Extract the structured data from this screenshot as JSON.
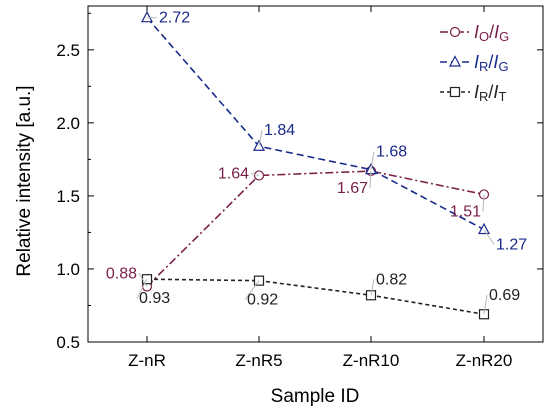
{
  "chart_data": {
    "type": "line",
    "title": "",
    "xlabel": "Sample ID",
    "ylabel": "Relative intensity [a.u.]",
    "categories": [
      "Z-nR",
      "Z-nR5",
      "Z-nR10",
      "Z-nR20"
    ],
    "ylim": [
      0.5,
      2.8
    ],
    "yticks": [
      0.5,
      1.0,
      1.5,
      2.0,
      2.5
    ],
    "ytick_labels": [
      "0.5",
      "1.0",
      "1.5",
      "2.0",
      "2.5"
    ],
    "grid": false,
    "legend_position": "top-right",
    "series": [
      {
        "legend_main": "I",
        "sub1": "O",
        "sep": "/",
        "legend_main2": "I",
        "sub2": "G",
        "values": [
          0.88,
          1.64,
          1.67,
          1.51
        ],
        "labels": [
          "0.88",
          "1.64",
          "1.67",
          "1.51"
        ],
        "color": "#7a1f4a",
        "marker": "circle",
        "line_style": "dash-dot"
      },
      {
        "legend_main": "I",
        "sub1": "R",
        "sep": "/",
        "legend_main2": "I",
        "sub2": "G",
        "values": [
          2.72,
          1.84,
          1.68,
          1.27
        ],
        "labels": [
          "2.72",
          "1.84",
          "1.68",
          "1.27"
        ],
        "color": "#1a2a8c",
        "marker": "triangle",
        "line_style": "dashed"
      },
      {
        "legend_main": "I",
        "sub1": "R",
        "sep": "/",
        "legend_main2": "I",
        "sub2": "T",
        "values": [
          0.93,
          0.92,
          0.82,
          0.69
        ],
        "labels": [
          "0.93",
          "0.92",
          "0.82",
          "0.69"
        ],
        "color": "#222222",
        "marker": "square",
        "line_style": "short-dashed"
      }
    ]
  }
}
